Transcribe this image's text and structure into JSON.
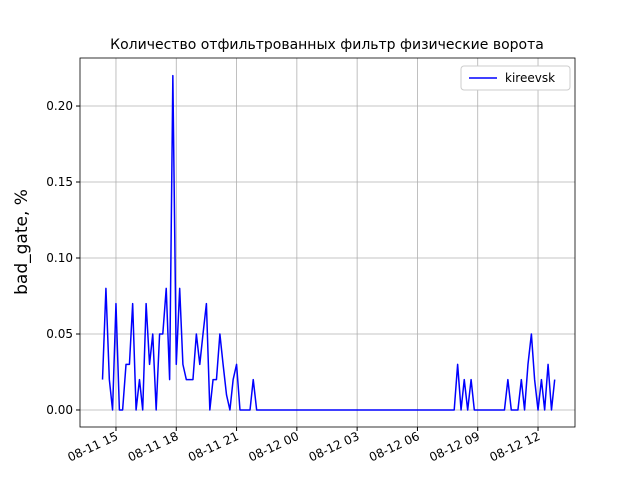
{
  "chart_data": {
    "type": "line",
    "title": "Количество отфильтрованных фильтр физические ворота",
    "y_label": "bad_gate, %",
    "x": [
      14.33,
      14.5,
      14.67,
      14.83,
      15,
      15.17,
      15.33,
      15.5,
      15.67,
      15.83,
      16,
      16.17,
      16.33,
      16.5,
      16.67,
      16.83,
      17,
      17.17,
      17.33,
      17.5,
      17.67,
      17.83,
      18,
      18.17,
      18.33,
      18.5,
      18.67,
      18.83,
      19,
      19.17,
      19.33,
      19.5,
      19.67,
      19.83,
      20,
      20.17,
      20.33,
      20.5,
      20.67,
      20.83,
      21,
      21.17,
      21.67,
      21.83,
      22,
      31.83,
      32,
      32.17,
      32.33,
      32.5,
      32.67,
      32.83,
      33,
      34.33,
      34.5,
      34.67,
      35,
      35.17,
      35.33,
      35.5,
      35.67,
      35.83,
      36,
      36.17,
      36.33,
      36.5,
      36.67,
      36.83
    ],
    "series": [
      {
        "name": "kireevsk",
        "color": "#0000ff",
        "values": [
          0.02,
          0.08,
          0.02,
          0,
          0.07,
          0,
          0,
          0.03,
          0.03,
          0.07,
          0,
          0.02,
          0,
          0.07,
          0.03,
          0.05,
          0,
          0.05,
          0.05,
          0.08,
          0.02,
          0.22,
          0.03,
          0.08,
          0.03,
          0.02,
          0.02,
          0.02,
          0.05,
          0.03,
          0.05,
          0.07,
          0,
          0.02,
          0.02,
          0.05,
          0.03,
          0.01,
          0,
          0.02,
          0.03,
          0,
          0,
          0.02,
          0,
          0,
          0.03,
          0,
          0.02,
          0,
          0.02,
          0,
          0,
          0,
          0.02,
          0,
          0,
          0.02,
          0,
          0.03,
          0.05,
          0.02,
          0,
          0.02,
          0,
          0.03,
          0,
          0.02
        ]
      }
    ],
    "xlim": [
      13.21,
      37.84
    ],
    "xticks": [
      {
        "value": 15,
        "label": "08-11 15"
      },
      {
        "value": 18,
        "label": "08-11 18"
      },
      {
        "value": 21,
        "label": "08-11 21"
      },
      {
        "value": 24,
        "label": "08-12 00"
      },
      {
        "value": 27,
        "label": "08-12 03"
      },
      {
        "value": 30,
        "label": "08-12 06"
      },
      {
        "value": 33,
        "label": "08-12 09"
      },
      {
        "value": 36,
        "label": "08-12 12"
      }
    ],
    "ylim": [
      -0.0112,
      0.2316
    ],
    "yticks": [
      {
        "value": 0,
        "label": "0.00"
      },
      {
        "value": 0.05,
        "label": "0.05"
      },
      {
        "value": 0.1,
        "label": "0.10"
      },
      {
        "value": 0.15,
        "label": "0.15"
      },
      {
        "value": 0.2,
        "label": "0.20"
      }
    ],
    "grid": true,
    "legend": "upper right"
  }
}
